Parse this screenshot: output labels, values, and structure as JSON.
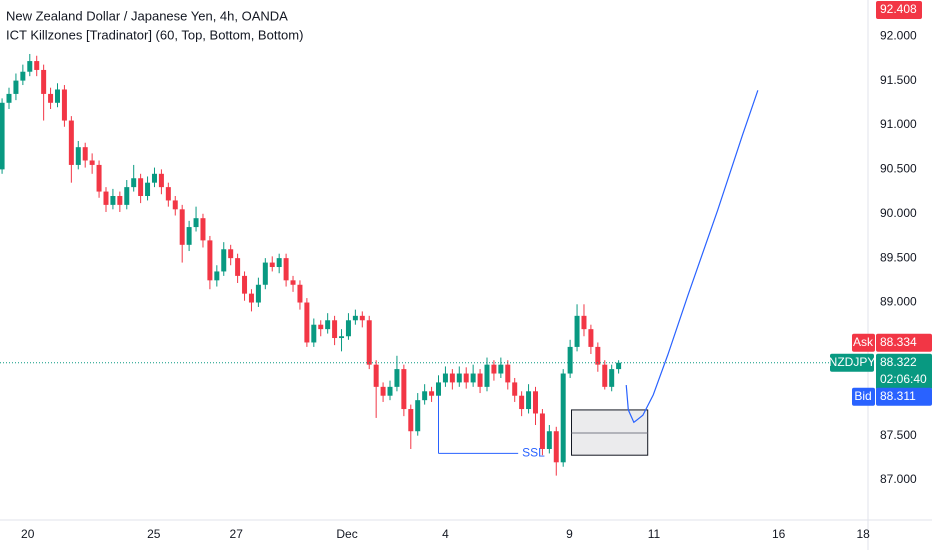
{
  "chart_data": {
    "type": "candlestick",
    "title": "New Zealand Dollar / Japanese Yen, 4h, OANDA",
    "subtitle": "ICT Killzones [Tradinator] (60, Top, Bottom, Bottom)",
    "symbol": "NZDJPY",
    "up_color": "#089981",
    "down_color": "#f23645",
    "open": [
      90.5,
      91.25,
      91.35,
      91.5,
      91.6,
      91.72,
      91.62,
      91.35,
      91.25,
      91.4,
      91.05,
      90.55,
      90.75,
      90.6,
      90.55,
      90.25,
      90.1,
      90.2,
      90.1,
      90.3,
      90.4,
      90.2,
      90.35,
      90.45,
      90.3,
      90.15,
      90.05,
      89.65,
      89.85,
      89.95,
      89.7,
      89.25,
      89.35,
      89.6,
      89.5,
      89.3,
      89.1,
      89.0,
      89.2,
      89.45,
      89.4,
      89.5,
      89.25,
      89.2,
      89.0,
      88.55,
      88.75,
      88.7,
      88.8,
      88.6,
      88.62,
      88.8,
      88.85,
      88.8,
      88.3,
      88.05,
      87.95,
      88.05,
      88.25,
      87.8,
      87.55,
      87.9,
      88.0,
      87.95,
      88.1,
      88.2,
      88.1,
      88.2,
      88.1,
      88.2,
      88.05,
      88.3,
      88.2,
      88.3,
      88.1,
      87.95,
      87.8,
      88.0,
      87.75,
      87.35,
      87.55,
      87.2,
      88.2,
      88.5,
      88.85,
      88.7,
      88.5,
      88.3,
      88.05,
      88.25
    ],
    "high": [
      91.3,
      91.42,
      91.58,
      91.68,
      91.8,
      91.78,
      91.68,
      91.42,
      91.47,
      91.45,
      91.1,
      90.82,
      90.8,
      90.68,
      90.6,
      90.3,
      90.28,
      90.25,
      90.38,
      90.55,
      90.45,
      90.42,
      90.52,
      90.5,
      90.35,
      90.2,
      90.1,
      89.92,
      90.08,
      90.0,
      89.75,
      89.42,
      89.68,
      89.65,
      89.55,
      89.35,
      89.15,
      89.28,
      89.5,
      89.52,
      89.55,
      89.55,
      89.3,
      89.25,
      89.05,
      88.82,
      88.8,
      88.88,
      88.85,
      88.7,
      88.88,
      88.92,
      88.9,
      88.85,
      88.35,
      88.1,
      88.12,
      88.4,
      88.3,
      87.85,
      87.98,
      88.08,
      88.05,
      88.18,
      88.28,
      88.25,
      88.28,
      88.27,
      88.3,
      88.25,
      88.38,
      88.35,
      88.38,
      88.35,
      88.15,
      88.0,
      88.08,
      88.05,
      87.8,
      87.62,
      87.6,
      88.25,
      88.58,
      88.98,
      88.98,
      88.75,
      88.55,
      88.35,
      88.3,
      88.35
    ],
    "low": [
      90.45,
      91.18,
      91.28,
      91.45,
      91.55,
      91.55,
      91.05,
      91.18,
      91.2,
      90.98,
      90.35,
      90.5,
      90.52,
      90.45,
      90.18,
      90.02,
      90.05,
      90.02,
      90.05,
      90.25,
      90.12,
      90.15,
      90.3,
      90.22,
      90.08,
      89.98,
      89.45,
      89.58,
      89.8,
      89.62,
      89.15,
      89.18,
      89.3,
      89.42,
      89.22,
      89.02,
      88.9,
      88.95,
      89.15,
      89.35,
      89.33,
      89.18,
      89.12,
      88.92,
      88.5,
      88.5,
      88.62,
      88.65,
      88.52,
      88.45,
      88.58,
      88.75,
      88.72,
      88.25,
      87.7,
      87.88,
      87.9,
      88.0,
      87.72,
      87.35,
      87.5,
      87.85,
      87.88,
      87.9,
      88.05,
      88.02,
      88.05,
      88.03,
      88.05,
      87.98,
      88.0,
      88.12,
      88.15,
      88.02,
      87.88,
      87.72,
      87.75,
      87.62,
      87.28,
      87.3,
      87.05,
      87.15,
      88.15,
      88.45,
      88.62,
      88.42,
      88.22,
      88.02,
      88.0,
      88.2
    ],
    "close": [
      91.25,
      91.35,
      91.5,
      91.6,
      91.72,
      91.62,
      91.35,
      91.25,
      91.4,
      91.05,
      90.55,
      90.75,
      90.6,
      90.55,
      90.25,
      90.1,
      90.2,
      90.1,
      90.3,
      90.4,
      90.2,
      90.35,
      90.45,
      90.3,
      90.15,
      90.05,
      89.65,
      89.85,
      89.95,
      89.7,
      89.25,
      89.35,
      89.6,
      89.5,
      89.3,
      89.1,
      89.0,
      89.2,
      89.45,
      89.4,
      89.5,
      89.25,
      89.2,
      89.0,
      88.55,
      88.75,
      88.7,
      88.8,
      88.6,
      88.62,
      88.8,
      88.85,
      88.8,
      88.3,
      88.05,
      87.95,
      88.05,
      88.25,
      87.8,
      87.55,
      87.9,
      88.0,
      87.95,
      88.1,
      88.2,
      88.1,
      88.2,
      88.1,
      88.2,
      88.05,
      88.3,
      88.2,
      88.3,
      88.1,
      87.95,
      87.8,
      88.0,
      87.75,
      87.35,
      87.55,
      87.2,
      88.2,
      88.5,
      88.85,
      88.7,
      88.5,
      88.3,
      88.05,
      88.25,
      88.322
    ],
    "xlim": [
      -0.3,
      125
    ],
    "xticks": [
      {
        "value": 3.7,
        "label": "20"
      },
      {
        "value": 21.9,
        "label": "25"
      },
      {
        "value": 33.8,
        "label": "27"
      },
      {
        "value": 49.8,
        "label": "Dec"
      },
      {
        "value": 64.0,
        "label": "4"
      },
      {
        "value": 81.9,
        "label": "9"
      },
      {
        "value": 94.1,
        "label": "11"
      },
      {
        "value": 112.1,
        "label": "16"
      },
      {
        "value": 124.3,
        "label": "18"
      }
    ],
    "ylim": [
      86.55,
      92.408
    ],
    "yticks": [
      {
        "value": 87,
        "label": "87.000"
      },
      {
        "value": 87.5,
        "label": "87.500"
      },
      {
        "value": 88,
        "label": "88.000"
      },
      {
        "value": 88.5,
        "label": "88.500"
      },
      {
        "value": 89,
        "label": "89.000"
      },
      {
        "value": 89.5,
        "label": "89.500"
      },
      {
        "value": 90,
        "label": "90.000"
      },
      {
        "value": 90.5,
        "label": "90.500"
      },
      {
        "value": 91,
        "label": "91.000"
      },
      {
        "value": 91.5,
        "label": "91.500"
      },
      {
        "value": 92,
        "label": "92.000"
      }
    ],
    "top_price": 92.408,
    "last_price": 88.322,
    "countdown": "02:06:40",
    "ask": {
      "label": "Ask",
      "value": 88.334
    },
    "bid": {
      "label": "Bid",
      "value": 88.311
    },
    "zone": {
      "x0": 82.2,
      "x1": 93.2,
      "top": 87.79,
      "mid": 87.53,
      "bottom": 87.28
    },
    "ssl": {
      "label": "SSL",
      "x0": 63,
      "x1": 74.5,
      "from": 87.95,
      "level": 87.3,
      "color": "#2962ff"
    },
    "projection": {
      "color": "#2962ff",
      "x": [
        90.1,
        90.4,
        91.2,
        92.5,
        94.0,
        96.1,
        99.0,
        103.3,
        106.9,
        109.1
      ],
      "y": [
        88.07,
        87.79,
        87.65,
        87.73,
        87.96,
        88.41,
        89.08,
        90.04,
        90.89,
        91.39
      ]
    }
  }
}
